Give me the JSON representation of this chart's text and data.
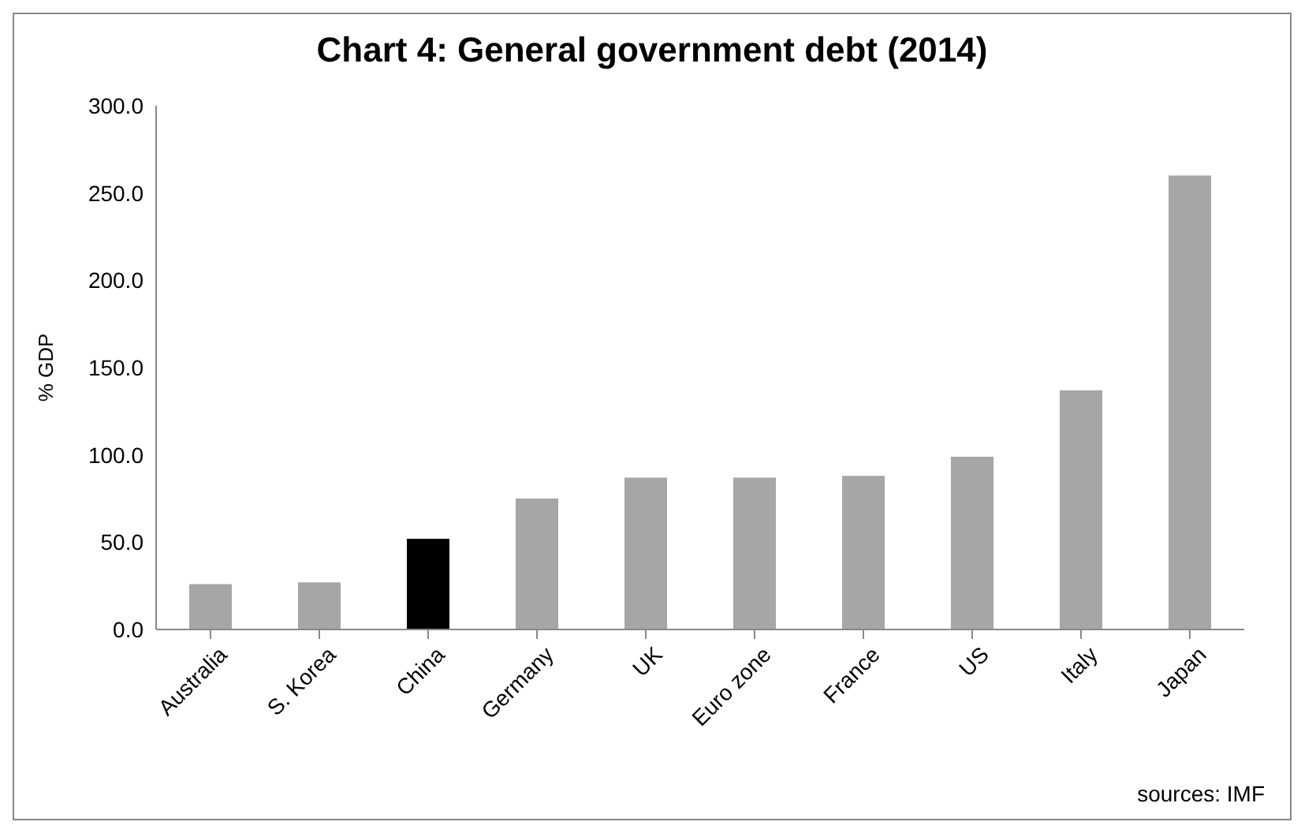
{
  "chart_data": {
    "type": "bar",
    "title": "Chart 4: General government debt (2014)",
    "ylabel": "% GDP",
    "categories": [
      "Australia",
      "S. Korea",
      "China",
      "Germany",
      "UK",
      "Euro zone",
      "France",
      "US",
      "Italy",
      "Japan"
    ],
    "values": [
      26,
      27,
      52,
      75,
      87,
      87,
      88,
      99,
      137,
      260
    ],
    "colors": [
      "#a6a6a6",
      "#a6a6a6",
      "#000000",
      "#a6a6a6",
      "#a6a6a6",
      "#a6a6a6",
      "#a6a6a6",
      "#a6a6a6",
      "#a6a6a6",
      "#a6a6a6"
    ],
    "ylim": [
      0,
      300
    ],
    "yticks": [
      {
        "value": 0,
        "label": "0.0"
      },
      {
        "value": 50,
        "label": "50.0"
      },
      {
        "value": 100,
        "label": "100.0"
      },
      {
        "value": 150,
        "label": "150.0"
      },
      {
        "value": 200,
        "label": "200.0"
      },
      {
        "value": 250,
        "label": "250.0"
      },
      {
        "value": 300,
        "label": "300.0"
      }
    ],
    "annotations": [
      "sources: IMF"
    ]
  }
}
